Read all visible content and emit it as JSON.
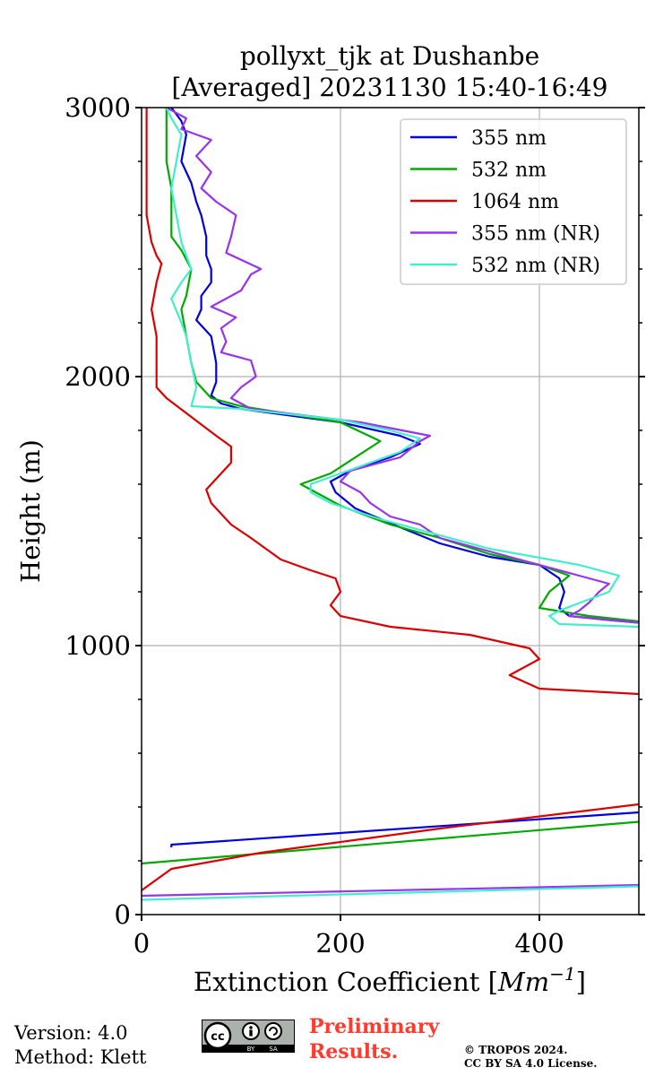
{
  "chart_data": {
    "type": "line",
    "title_line1": "pollyxt_tjk at Dushanbe",
    "title_line2": "[Averaged] 20231130 15:40-16:49",
    "xlabel": "Extinction Coefficient [",
    "xlabel_unit": "Mm",
    "xlabel_exp": "−1",
    "xlabel_close": "]",
    "ylabel": "Height (m)",
    "xlim": [
      0,
      500
    ],
    "ylim": [
      0,
      3000
    ],
    "xticks": [
      0,
      200,
      400
    ],
    "yticks": [
      0,
      1000,
      2000,
      3000
    ],
    "grid": true,
    "legend_position": "top-right",
    "series": [
      {
        "name": "355 nm",
        "color": "#0000e0",
        "points": [
          [
            500,
            380
          ],
          [
            30,
            260
          ],
          [
            30,
            250
          ]
        ]
      },
      {
        "name": "532 nm",
        "color": "#00aa00",
        "points": [
          [
            500,
            345
          ],
          [
            0,
            190
          ],
          [
            0,
            185
          ]
        ]
      },
      {
        "name": "1064 nm",
        "color": "#dd0000",
        "points": [
          [
            0,
            90
          ],
          [
            30,
            170
          ],
          [
            120,
            230
          ],
          [
            300,
            320
          ],
          [
            500,
            410
          ]
        ]
      },
      {
        "name": "355 nm (NR)",
        "color": "#9933ee",
        "points": [
          [
            0,
            70
          ],
          [
            500,
            110
          ]
        ]
      },
      {
        "name": "532 nm (NR)",
        "color": "#44eecc",
        "points": [
          [
            0,
            55
          ],
          [
            500,
            105
          ]
        ]
      },
      {
        "name": "355 nm",
        "color": "#0000e0",
        "points": [
          [
            500,
            1085
          ],
          [
            470,
            1095
          ],
          [
            430,
            1110
          ],
          [
            420,
            1140
          ],
          [
            425,
            1200
          ],
          [
            420,
            1250
          ],
          [
            400,
            1300
          ],
          [
            350,
            1330
          ],
          [
            300,
            1380
          ],
          [
            260,
            1440
          ],
          [
            215,
            1510
          ],
          [
            195,
            1570
          ],
          [
            190,
            1610
          ],
          [
            210,
            1650
          ],
          [
            250,
            1700
          ],
          [
            280,
            1750
          ],
          [
            260,
            1780
          ],
          [
            200,
            1830
          ],
          [
            100,
            1880
          ],
          [
            80,
            1900
          ],
          [
            70,
            1930
          ],
          [
            75,
            1980
          ],
          [
            75,
            2050
          ],
          [
            70,
            2150
          ],
          [
            55,
            2210
          ],
          [
            60,
            2250
          ],
          [
            60,
            2300
          ],
          [
            70,
            2350
          ],
          [
            70,
            2400
          ],
          [
            65,
            2450
          ],
          [
            65,
            2520
          ],
          [
            60,
            2600
          ],
          [
            55,
            2650
          ],
          [
            50,
            2720
          ],
          [
            40,
            2800
          ],
          [
            45,
            2900
          ],
          [
            40,
            2950
          ],
          [
            30,
            3000
          ]
        ]
      },
      {
        "name": "532 nm",
        "color": "#00aa00",
        "points": [
          [
            500,
            1090
          ],
          [
            450,
            1110
          ],
          [
            400,
            1140
          ],
          [
            410,
            1200
          ],
          [
            430,
            1260
          ],
          [
            400,
            1300
          ],
          [
            350,
            1340
          ],
          [
            300,
            1400
          ],
          [
            250,
            1450
          ],
          [
            200,
            1520
          ],
          [
            170,
            1580
          ],
          [
            160,
            1600
          ],
          [
            190,
            1640
          ],
          [
            240,
            1760
          ],
          [
            200,
            1830
          ],
          [
            100,
            1890
          ],
          [
            70,
            1920
          ],
          [
            55,
            1980
          ],
          [
            50,
            2050
          ],
          [
            45,
            2150
          ],
          [
            40,
            2250
          ],
          [
            45,
            2300
          ],
          [
            50,
            2400
          ],
          [
            40,
            2470
          ],
          [
            30,
            2520
          ],
          [
            30,
            2600
          ],
          [
            30,
            2700
          ],
          [
            25,
            2800
          ],
          [
            25,
            2900
          ],
          [
            25,
            3000
          ]
        ]
      },
      {
        "name": "1064 nm",
        "color": "#dd0000",
        "points": [
          [
            500,
            820
          ],
          [
            400,
            840
          ],
          [
            370,
            890
          ],
          [
            400,
            950
          ],
          [
            390,
            990
          ],
          [
            330,
            1040
          ],
          [
            250,
            1070
          ],
          [
            200,
            1110
          ],
          [
            190,
            1150
          ],
          [
            200,
            1200
          ],
          [
            195,
            1250
          ],
          [
            170,
            1280
          ],
          [
            140,
            1320
          ],
          [
            110,
            1400
          ],
          [
            90,
            1450
          ],
          [
            70,
            1530
          ],
          [
            65,
            1580
          ],
          [
            80,
            1640
          ],
          [
            90,
            1680
          ],
          [
            90,
            1740
          ],
          [
            75,
            1780
          ],
          [
            50,
            1850
          ],
          [
            25,
            1920
          ],
          [
            15,
            1960
          ],
          [
            15,
            2050
          ],
          [
            15,
            2150
          ],
          [
            10,
            2250
          ],
          [
            15,
            2350
          ],
          [
            20,
            2420
          ],
          [
            15,
            2450
          ],
          [
            10,
            2500
          ],
          [
            5,
            2600
          ],
          [
            5,
            2700
          ],
          [
            5,
            2800
          ],
          [
            5,
            2900
          ],
          [
            5,
            3000
          ]
        ]
      },
      {
        "name": "355 nm (NR)",
        "color": "#9933ee",
        "points": [
          [
            500,
            1085
          ],
          [
            430,
            1110
          ],
          [
            440,
            1130
          ],
          [
            450,
            1160
          ],
          [
            460,
            1200
          ],
          [
            470,
            1230
          ],
          [
            440,
            1260
          ],
          [
            400,
            1300
          ],
          [
            350,
            1350
          ],
          [
            300,
            1400
          ],
          [
            280,
            1450
          ],
          [
            250,
            1480
          ],
          [
            230,
            1530
          ],
          [
            220,
            1570
          ],
          [
            200,
            1610
          ],
          [
            210,
            1650
          ],
          [
            260,
            1700
          ],
          [
            280,
            1760
          ],
          [
            290,
            1780
          ],
          [
            220,
            1830
          ],
          [
            110,
            1880
          ],
          [
            90,
            1920
          ],
          [
            100,
            1960
          ],
          [
            115,
            2000
          ],
          [
            110,
            2060
          ],
          [
            80,
            2090
          ],
          [
            85,
            2130
          ],
          [
            80,
            2180
          ],
          [
            95,
            2220
          ],
          [
            70,
            2260
          ],
          [
            100,
            2320
          ],
          [
            110,
            2380
          ],
          [
            120,
            2400
          ],
          [
            85,
            2460
          ],
          [
            90,
            2520
          ],
          [
            95,
            2600
          ],
          [
            75,
            2650
          ],
          [
            60,
            2700
          ],
          [
            70,
            2760
          ],
          [
            55,
            2820
          ],
          [
            70,
            2880
          ],
          [
            40,
            2920
          ],
          [
            45,
            2960
          ],
          [
            25,
            3000
          ]
        ]
      },
      {
        "name": "532 nm (NR)",
        "color": "#44eecc",
        "points": [
          [
            500,
            1070
          ],
          [
            420,
            1080
          ],
          [
            410,
            1110
          ],
          [
            420,
            1130
          ],
          [
            470,
            1200
          ],
          [
            480,
            1260
          ],
          [
            440,
            1300
          ],
          [
            350,
            1360
          ],
          [
            300,
            1410
          ],
          [
            240,
            1470
          ],
          [
            190,
            1530
          ],
          [
            170,
            1570
          ],
          [
            170,
            1600
          ],
          [
            200,
            1640
          ],
          [
            260,
            1720
          ],
          [
            280,
            1770
          ],
          [
            250,
            1800
          ],
          [
            200,
            1840
          ],
          [
            100,
            1880
          ],
          [
            50,
            1890
          ],
          [
            55,
            1960
          ],
          [
            50,
            2050
          ],
          [
            45,
            2150
          ],
          [
            40,
            2200
          ],
          [
            30,
            2290
          ],
          [
            40,
            2350
          ],
          [
            50,
            2400
          ],
          [
            45,
            2450
          ],
          [
            40,
            2500
          ],
          [
            35,
            2600
          ],
          [
            30,
            2700
          ],
          [
            35,
            2800
          ],
          [
            40,
            2900
          ],
          [
            30,
            2960
          ],
          [
            25,
            3000
          ]
        ]
      }
    ],
    "legend": [
      "355 nm",
      "532 nm",
      "1064 nm",
      "355 nm (NR)",
      "532 nm (NR)"
    ],
    "legend_colors": [
      "#0000e0",
      "#00aa00",
      "#dd0000",
      "#9933ee",
      "#44eecc"
    ]
  },
  "footer": {
    "version": "Version: 4.0",
    "method": "Method: Klett",
    "prelim_line1": "Preliminary",
    "prelim_line2": "Results.",
    "copyright_line1": "© TROPOS 2024.",
    "copyright_line2": "CC BY SA 4.0 License.",
    "cc_by": "BY",
    "cc_sa": "SA"
  }
}
